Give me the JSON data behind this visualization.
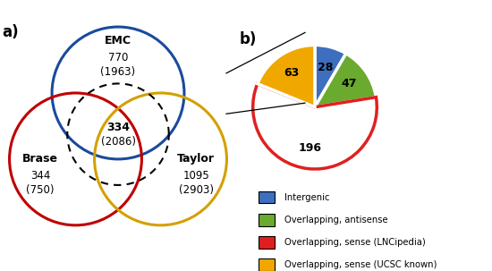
{
  "panel_a_label": "a)",
  "panel_b_label": "b)",
  "venn": {
    "emc": {
      "label": "EMC",
      "count": "770",
      "total": "(1963)",
      "color": "#1a4a9c"
    },
    "brase": {
      "label": "Brase",
      "count": "344",
      "total": "(750)",
      "color": "#c00000"
    },
    "taylor": {
      "label": "Taylor",
      "count": "1095",
      "total": "(2903)",
      "color": "#d4a000"
    },
    "overlap_count": "334",
    "overlap_total": "(2086)"
  },
  "pie": {
    "values": [
      28,
      47,
      196,
      63
    ],
    "colors": [
      "#3d6fbe",
      "#6aaa2e",
      "#e02020",
      "#f0a800"
    ],
    "labels": [
      "28",
      "47",
      "196",
      "63"
    ],
    "startangle": 90,
    "legend_labels": [
      "Intergenic",
      "Overlapping, antisense",
      "Overlapping, sense (LNCipedia)",
      "Overlapping, sense (UCSC known)"
    ],
    "legend_colors": [
      "#3d6fbe",
      "#6aaa2e",
      "#e02020",
      "#f0a800"
    ]
  }
}
